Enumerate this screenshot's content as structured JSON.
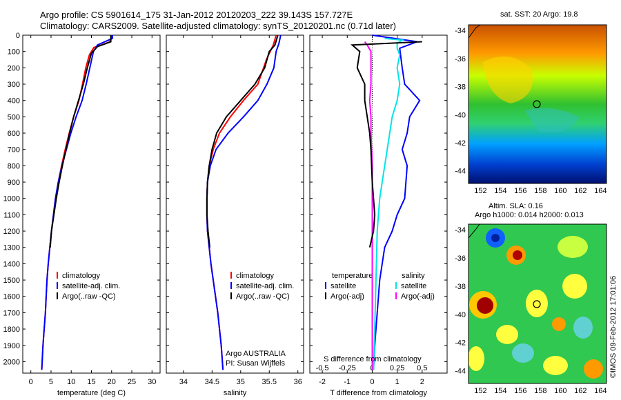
{
  "header": {
    "line1": "Argo profile: CS 5901614_175 31-Jan-2012 20120203_222 39.143S 157.727E",
    "line2": "Climatology: CARS2009. Satellite-adjusted climatology: synTS_20120201.nc (0.71d later)"
  },
  "watermark": "©IMOS 09-Feb-2012 17:01:06",
  "colors": {
    "climatology": "#ff0000",
    "satellite": "#0000ff",
    "argo": "#000000",
    "sal_satellite": "#00e5e5",
    "sal_argo": "#ff00ff"
  },
  "chart_data": [
    {
      "type": "line",
      "id": "temperature",
      "xlabel": "temperature (deg C)",
      "ylabel": "",
      "xlim": [
        -2,
        32
      ],
      "ylim": [
        2070,
        0
      ],
      "xticks": [
        "0",
        "5",
        "10",
        "15",
        "20",
        "25",
        "30"
      ],
      "yticks": [
        "0",
        "100",
        "200",
        "300",
        "400",
        "500",
        "600",
        "700",
        "800",
        "900",
        "1000",
        "1100",
        "1200",
        "1300",
        "1400",
        "1500",
        "1600",
        "1700",
        "1800",
        "1900",
        "2000"
      ],
      "legend": [
        "climatology",
        "satellite-adj. clim.",
        "Argo(..raw -QC)"
      ],
      "series": [
        {
          "name": "climatology",
          "color": "red",
          "points": [
            [
              20.1,
              0
            ],
            [
              19.6,
              40
            ],
            [
              17.5,
              60
            ],
            [
              15.6,
              75
            ],
            [
              14.5,
              120
            ],
            [
              13.6,
              200
            ],
            [
              12.8,
              300
            ],
            [
              11.9,
              400
            ],
            [
              10.6,
              500
            ],
            [
              9.5,
              600
            ],
            [
              8.5,
              700
            ],
            [
              7.6,
              800
            ],
            [
              6.8,
              900
            ],
            [
              6.1,
              1000
            ],
            [
              5.6,
              1100
            ],
            [
              5.1,
              1200
            ],
            [
              4.7,
              1300
            ],
            [
              4.3,
              1400
            ],
            [
              4.0,
              1500
            ],
            [
              3.8,
              1600
            ],
            [
              3.6,
              1700
            ],
            [
              3.3,
              1800
            ],
            [
              3.0,
              1900
            ],
            [
              2.8,
              2000
            ],
            [
              2.7,
              2050
            ]
          ]
        },
        {
          "name": "satellite-adj. clim.",
          "color": "blue",
          "points": [
            [
              20.2,
              0
            ],
            [
              20.2,
              20
            ],
            [
              16.5,
              60
            ],
            [
              15.5,
              100
            ],
            [
              14.6,
              200
            ],
            [
              13.7,
              300
            ],
            [
              12.7,
              400
            ],
            [
              11.2,
              500
            ],
            [
              9.9,
              600
            ],
            [
              8.8,
              700
            ],
            [
              7.7,
              800
            ],
            [
              6.8,
              900
            ],
            [
              6.1,
              1000
            ],
            [
              5.6,
              1100
            ],
            [
              5.1,
              1200
            ],
            [
              4.7,
              1300
            ],
            [
              4.3,
              1400
            ],
            [
              4.0,
              1500
            ],
            [
              3.8,
              1600
            ],
            [
              3.6,
              1700
            ],
            [
              3.3,
              1800
            ],
            [
              3.0,
              1900
            ],
            [
              2.8,
              2000
            ],
            [
              2.7,
              2050
            ]
          ]
        },
        {
          "name": "Argo(..raw -QC)",
          "color": "black",
          "points": [
            [
              19.8,
              0
            ],
            [
              19.8,
              40
            ],
            [
              16.5,
              70
            ],
            [
              15.0,
              110
            ],
            [
              14.0,
              200
            ],
            [
              13.0,
              300
            ],
            [
              11.8,
              400
            ],
            [
              10.6,
              500
            ],
            [
              9.6,
              600
            ],
            [
              8.7,
              700
            ],
            [
              7.8,
              800
            ],
            [
              7.0,
              900
            ],
            [
              6.3,
              1000
            ],
            [
              5.7,
              1100
            ],
            [
              5.1,
              1200
            ],
            [
              4.8,
              1300
            ]
          ]
        }
      ]
    },
    {
      "type": "line",
      "id": "salinity",
      "xlabel": "salinity",
      "ylabel": "",
      "xlim": [
        33.7,
        36.1
      ],
      "ylim": [
        2070,
        0
      ],
      "xticks": [
        "34",
        "34.5",
        "35",
        "35.5",
        "36"
      ],
      "legend": [
        "climatology",
        "satellite-adj. clim.",
        "Argo(..raw -QC)"
      ],
      "annotation": [
        "Argo AUSTRALIA",
        "PI: Susan Wijffels"
      ],
      "series": [
        {
          "name": "climatology",
          "color": "red",
          "points": [
            [
              35.62,
              0
            ],
            [
              35.57,
              60
            ],
            [
              35.45,
              150
            ],
            [
              35.3,
              300
            ],
            [
              35.05,
              400
            ],
            [
              34.82,
              500
            ],
            [
              34.63,
              600
            ],
            [
              34.52,
              700
            ],
            [
              34.45,
              800
            ],
            [
              34.42,
              900
            ],
            [
              34.41,
              1000
            ],
            [
              34.41,
              1100
            ],
            [
              34.42,
              1200
            ],
            [
              34.45,
              1300
            ],
            [
              34.48,
              1400
            ],
            [
              34.52,
              1500
            ],
            [
              34.56,
              1600
            ],
            [
              34.6,
              1700
            ],
            [
              34.63,
              1800
            ],
            [
              34.66,
              1900
            ],
            [
              34.68,
              2000
            ],
            [
              34.69,
              2050
            ]
          ]
        },
        {
          "name": "satellite-adj. clim.",
          "color": "blue",
          "points": [
            [
              35.7,
              0
            ],
            [
              35.67,
              50
            ],
            [
              35.62,
              100
            ],
            [
              35.58,
              200
            ],
            [
              35.46,
              300
            ],
            [
              35.3,
              400
            ],
            [
              35.05,
              500
            ],
            [
              34.78,
              600
            ],
            [
              34.57,
              700
            ],
            [
              34.47,
              800
            ],
            [
              34.42,
              900
            ],
            [
              34.41,
              1000
            ],
            [
              34.41,
              1100
            ],
            [
              34.42,
              1200
            ],
            [
              34.45,
              1300
            ],
            [
              34.48,
              1400
            ],
            [
              34.52,
              1500
            ],
            [
              34.56,
              1600
            ],
            [
              34.6,
              1700
            ],
            [
              34.63,
              1800
            ],
            [
              34.66,
              1900
            ],
            [
              34.68,
              2000
            ],
            [
              34.69,
              2050
            ]
          ]
        },
        {
          "name": "Argo(..raw -QC)",
          "color": "black",
          "points": [
            [
              35.65,
              0
            ],
            [
              35.6,
              60
            ],
            [
              35.5,
              100
            ],
            [
              35.42,
              200
            ],
            [
              35.25,
              300
            ],
            [
              35.0,
              400
            ],
            [
              34.75,
              500
            ],
            [
              34.58,
              600
            ],
            [
              34.5,
              700
            ],
            [
              34.45,
              800
            ],
            [
              34.42,
              900
            ],
            [
              34.41,
              1000
            ],
            [
              34.41,
              1100
            ],
            [
              34.43,
              1200
            ],
            [
              34.46,
              1300
            ]
          ]
        }
      ]
    },
    {
      "type": "line",
      "id": "difference",
      "xlabel": "T difference from climatology",
      "title": "S difference from climatology",
      "xlim": [
        -2.5,
        3.0
      ],
      "ylim": [
        2070,
        0
      ],
      "xticks_t": [
        "-2",
        "-1",
        "0",
        "1",
        "2"
      ],
      "xticks_s": [
        "-0.5",
        "-0.25",
        "0",
        "0.25",
        "0.5"
      ],
      "legend": [
        "temperature",
        "satellite",
        "Argo(-adj)",
        "salinity",
        "satellite",
        "Argo(-adj)"
      ],
      "series": [
        {
          "name": "satellite",
          "color": "blue",
          "points": [
            [
              0,
              0
            ],
            [
              1.8,
              40
            ],
            [
              1.1,
              80
            ],
            [
              1.2,
              200
            ],
            [
              1.3,
              300
            ],
            [
              1.9,
              400
            ],
            [
              1.5,
              500
            ],
            [
              1.4,
              600
            ],
            [
              1.2,
              700
            ],
            [
              1.4,
              800
            ],
            [
              1.3,
              1000
            ],
            [
              1.0,
              1100
            ],
            [
              0.8,
              1200
            ],
            [
              0.5,
              1300
            ],
            [
              0.3,
              1500
            ],
            [
              0.2,
              1700
            ],
            [
              0.1,
              1900
            ],
            [
              0.05,
              2050
            ]
          ]
        },
        {
          "name": "satellite",
          "color": "cyan",
          "points": [
            [
              0.5,
              20
            ],
            [
              1.2,
              30
            ],
            [
              1.0,
              50
            ],
            [
              1.0,
              80
            ],
            [
              1.1,
              120
            ],
            [
              1.0,
              200
            ],
            [
              1.1,
              300
            ],
            [
              1.0,
              400
            ],
            [
              0.8,
              500
            ],
            [
              0.7,
              600
            ],
            [
              0.6,
              700
            ],
            [
              0.5,
              800
            ],
            [
              0.3,
              1000
            ],
            [
              0.2,
              1200
            ],
            [
              0.15,
              1500
            ],
            [
              0.1,
              1800
            ],
            [
              0.05,
              2050
            ]
          ]
        },
        {
          "name": "Argo(-adj)",
          "color": "magenta",
          "points": [
            [
              -0.3,
              40
            ],
            [
              -0.2,
              60
            ],
            [
              -0.05,
              100
            ],
            [
              -0.05,
              200
            ],
            [
              -0.05,
              300
            ],
            [
              -0.1,
              400
            ],
            [
              -0.05,
              500
            ],
            [
              -0.05,
              600
            ],
            [
              0,
              800
            ],
            [
              0,
              1100
            ],
            [
              0,
              1400
            ],
            [
              0,
              2050
            ]
          ]
        },
        {
          "name": "Argo(-adj)",
          "color": "black",
          "points": [
            [
              2.0,
              40
            ],
            [
              -0.8,
              60
            ],
            [
              -0.5,
              100
            ],
            [
              -0.6,
              200
            ],
            [
              -0.3,
              300
            ],
            [
              -0.3,
              400
            ],
            [
              -0.2,
              500
            ],
            [
              -0.1,
              600
            ],
            [
              -0.05,
              700
            ],
            [
              0,
              900
            ],
            [
              0.05,
              1000
            ],
            [
              0.1,
              1100
            ],
            [
              0.05,
              1200
            ],
            [
              -0.1,
              1300
            ]
          ]
        }
      ]
    },
    {
      "type": "heatmap",
      "id": "sst-map",
      "title": "sat. SST: 20 Argo: 19.8",
      "xticks": [
        "152",
        "154",
        "156",
        "158",
        "160",
        "162",
        "164"
      ],
      "yticks": [
        "-34",
        "-36",
        "-38",
        "-40",
        "-42",
        "-44"
      ],
      "xlim": [
        150.8,
        164.6
      ],
      "ylim": [
        -44.9,
        -33.6
      ],
      "marker": {
        "lon": 157.7,
        "lat": -39.14
      }
    },
    {
      "type": "heatmap",
      "id": "sla-map",
      "title": "Altim. SLA: 0.16",
      "subtitle": "Argo h1000: 0.014 h2000: 0.013",
      "xticks": [
        "152",
        "154",
        "156",
        "158",
        "160",
        "162",
        "164"
      ],
      "yticks": [
        "-34",
        "-36",
        "-38",
        "-40",
        "-42",
        "-44"
      ],
      "xlim": [
        150.8,
        164.6
      ],
      "ylim": [
        -44.9,
        -33.6
      ],
      "marker": {
        "lon": 157.7,
        "lat": -39.14
      }
    }
  ]
}
